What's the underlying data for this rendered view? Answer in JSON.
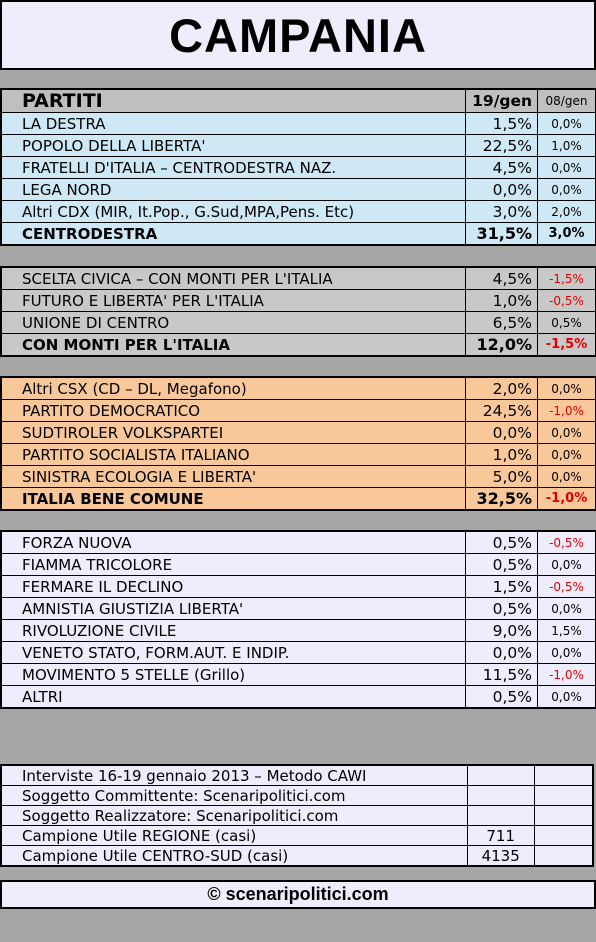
{
  "title": "CAMPANIA",
  "header": {
    "party_col": "PARTITI",
    "col_current": "19/gen",
    "col_prev": "08/gen"
  },
  "blocks": [
    {
      "rows": [
        {
          "name": "LA DESTRA",
          "value": "1,5%",
          "change": "0,0%"
        },
        {
          "name": "POPOLO DELLA LIBERTA'",
          "value": "22,5%",
          "change": "1,0%"
        },
        {
          "name": "FRATELLI D'ITALIA – CENTRODESTRA NAZ.",
          "value": "4,5%",
          "change": "0,0%"
        },
        {
          "name": "LEGA NORD",
          "value": "0,0%",
          "change": "0,0%"
        },
        {
          "name": "Altri CDX (MIR, It.Pop., G.Sud,MPA,Pens. Etc)",
          "value": "3,0%",
          "change": "2,0%"
        }
      ],
      "total": {
        "name": "CENTRODESTRA",
        "value": "31,5%",
        "change": "3,0%"
      }
    },
    {
      "rows": [
        {
          "name": "SCELTA CIVICA – CON MONTI PER L'ITALIA",
          "value": "4,5%",
          "change": "-1,5%"
        },
        {
          "name": "FUTURO E LIBERTA' PER L'ITALIA",
          "value": "1,0%",
          "change": "-0,5%"
        },
        {
          "name": "UNIONE DI CENTRO",
          "value": "6,5%",
          "change": "0,5%"
        }
      ],
      "total": {
        "name": "CON MONTI PER L'ITALIA",
        "value": "12,0%",
        "change": "-1,5%"
      }
    },
    {
      "rows": [
        {
          "name": "Altri CSX (CD – DL, Megafono)",
          "value": "2,0%",
          "change": "0,0%"
        },
        {
          "name": "PARTITO DEMOCRATICO",
          "value": "24,5%",
          "change": "-1,0%"
        },
        {
          "name": "SUDTIROLER VOLKSPARTEI",
          "value": "0,0%",
          "change": "0,0%"
        },
        {
          "name": "PARTITO SOCIALISTA ITALIANO",
          "value": "1,0%",
          "change": "0,0%"
        },
        {
          "name": "SINISTRA ECOLOGIA E LIBERTA'",
          "value": "5,0%",
          "change": "0,0%"
        }
      ],
      "total": {
        "name": "ITALIA BENE COMUNE",
        "value": "32,5%",
        "change": "-1,0%"
      }
    },
    {
      "rows": [
        {
          "name": "FORZA NUOVA",
          "value": "0,5%",
          "change": "-0,5%"
        },
        {
          "name": "FIAMMA TRICOLORE",
          "value": "0,5%",
          "change": "0,0%"
        },
        {
          "name": "FERMARE IL DECLINO",
          "value": "1,5%",
          "change": "-0,5%"
        },
        {
          "name": "AMNISTIA GIUSTIZIA LIBERTA'",
          "value": "0,5%",
          "change": "0,0%"
        },
        {
          "name": "RIVOLUZIONE CIVILE",
          "value": "9,0%",
          "change": "1,5%"
        },
        {
          "name": "VENETO STATO, FORM.AUT. E INDIP.",
          "value": "0,0%",
          "change": "0,0%"
        },
        {
          "name": "MOVIMENTO 5 STELLE (Grillo)",
          "value": "11,5%",
          "change": "-1,0%"
        },
        {
          "name": "ALTRI",
          "value": "0,5%",
          "change": "0,0%"
        }
      ]
    }
  ],
  "info": [
    {
      "label": "Interviste 16-19 gennaio 2013 – Metodo CAWI",
      "value": ""
    },
    {
      "label": "Soggetto Committente: Scenaripolitici.com",
      "value": ""
    },
    {
      "label": "Soggetto Realizzatore: Scenaripolitici.com",
      "value": ""
    },
    {
      "label": "Campione Utile REGIONE (casi)",
      "value": "711"
    },
    {
      "label": "Campione Utile CENTRO-SUD (casi)",
      "value": "4135"
    }
  ],
  "footer": "© scenaripolitici.com",
  "colors": {
    "background": "#a6a6a6",
    "title_bg": "#ededfb",
    "header_bg": "#bfbfbf",
    "cdx_bg": "#cfe8f5",
    "monti_bg": "#c8c8c8",
    "csx_bg": "#f9c89a",
    "others_bg": "#ededfb",
    "negative_text": "#e00000"
  }
}
